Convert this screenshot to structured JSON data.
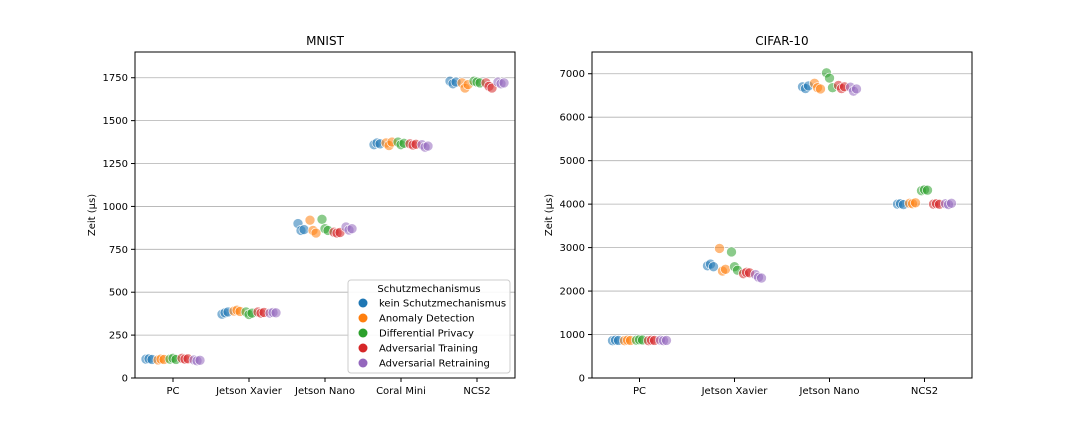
{
  "legend": {
    "title": "Schutzmechanismus",
    "placement": "lower-right",
    "entries": [
      {
        "name": "kein Schutzmechanismus",
        "color": "#1f77b4"
      },
      {
        "name": "Anomaly Detection",
        "color": "#ff7f0e"
      },
      {
        "name": "Differential Privacy",
        "color": "#2ca02c"
      },
      {
        "name": "Adversarial Training",
        "color": "#d62728"
      },
      {
        "name": "Adversarial Retraining",
        "color": "#9467bd"
      }
    ]
  },
  "chart_data": [
    {
      "type": "scatter",
      "title": "MNIST",
      "ylabel": "Zeit (μs)",
      "xlabel": "",
      "categories": [
        "PC",
        "Jetson Xavier",
        "Jetson Nano",
        "Coral Mini",
        "NCS2"
      ],
      "ylim": [
        0,
        1900
      ],
      "yticks": [
        0,
        250,
        500,
        750,
        1000,
        1250,
        1500,
        1750
      ],
      "grid": "y",
      "series": [
        {
          "name": "kein Schutzmechanismus",
          "values": [
            [
              110,
              112,
              108
            ],
            [
              372,
              380,
              385
            ],
            [
              900,
              860,
              865
            ],
            [
              1360,
              1370,
              1365
            ],
            [
              1730,
              1715,
              1725
            ]
          ]
        },
        {
          "name": "Anomaly Detection",
          "values": [
            [
              105,
              110,
              108
            ],
            [
              390,
              395,
              388
            ],
            [
              920,
              860,
              845
            ],
            [
              1370,
              1355,
              1375
            ],
            [
              1720,
              1690,
              1710
            ]
          ]
        },
        {
          "name": "Differential Privacy",
          "values": [
            [
              110,
              115,
              108
            ],
            [
              385,
              370,
              378
            ],
            [
              925,
              870,
              860
            ],
            [
              1375,
              1360,
              1368
            ],
            [
              1730,
              1725,
              1720
            ]
          ]
        },
        {
          "name": "Adversarial Training",
          "values": [
            [
              115,
              110,
              112
            ],
            [
              385,
              378,
              382
            ],
            [
              850,
              845,
              848
            ],
            [
              1365,
              1358,
              1362
            ],
            [
              1720,
              1700,
              1690
            ]
          ]
        },
        {
          "name": "Adversarial Retraining",
          "values": [
            [
              105,
              100,
              103
            ],
            [
              378,
              382,
              380
            ],
            [
              880,
              862,
              870
            ],
            [
              1360,
              1345,
              1352
            ],
            [
              1725,
              1715,
              1720
            ]
          ]
        }
      ]
    },
    {
      "type": "scatter",
      "title": "CIFAR-10",
      "ylabel": "Zeit (μs)",
      "xlabel": "",
      "categories": [
        "PC",
        "Jetson Xavier",
        "Jetson Nano",
        "NCS2"
      ],
      "ylim": [
        0,
        7500
      ],
      "yticks": [
        0,
        1000,
        2000,
        3000,
        4000,
        5000,
        6000,
        7000
      ],
      "grid": "y",
      "series": [
        {
          "name": "kein Schutzmechanismus",
          "values": [
            [
              860,
              870,
              865
            ],
            [
              2580,
              2620,
              2560
            ],
            [
              6700,
              6660,
              6720
            ],
            [
              4000,
              4010,
              3990
            ]
          ]
        },
        {
          "name": "Anomaly Detection",
          "values": [
            [
              860,
              870,
              865
            ],
            [
              2980,
              2460,
              2500
            ],
            [
              6780,
              6680,
              6650
            ],
            [
              4020,
              4010,
              4030
            ]
          ]
        },
        {
          "name": "Differential Privacy",
          "values": [
            [
              870,
              880,
              875
            ],
            [
              2900,
              2560,
              2480
            ],
            [
              7020,
              6900,
              6680
            ],
            [
              4310,
              4330,
              4320
            ]
          ]
        },
        {
          "name": "Adversarial Training",
          "values": [
            [
              860,
              870,
              865
            ],
            [
              2400,
              2430,
              2420
            ],
            [
              6730,
              6660,
              6700
            ],
            [
              4000,
              4010,
              3995
            ]
          ]
        },
        {
          "name": "Adversarial Retraining",
          "values": [
            [
              870,
              860,
              865
            ],
            [
              2380,
              2320,
              2300
            ],
            [
              6690,
              6600,
              6650
            ],
            [
              4010,
              3990,
              4020
            ]
          ]
        }
      ]
    }
  ]
}
